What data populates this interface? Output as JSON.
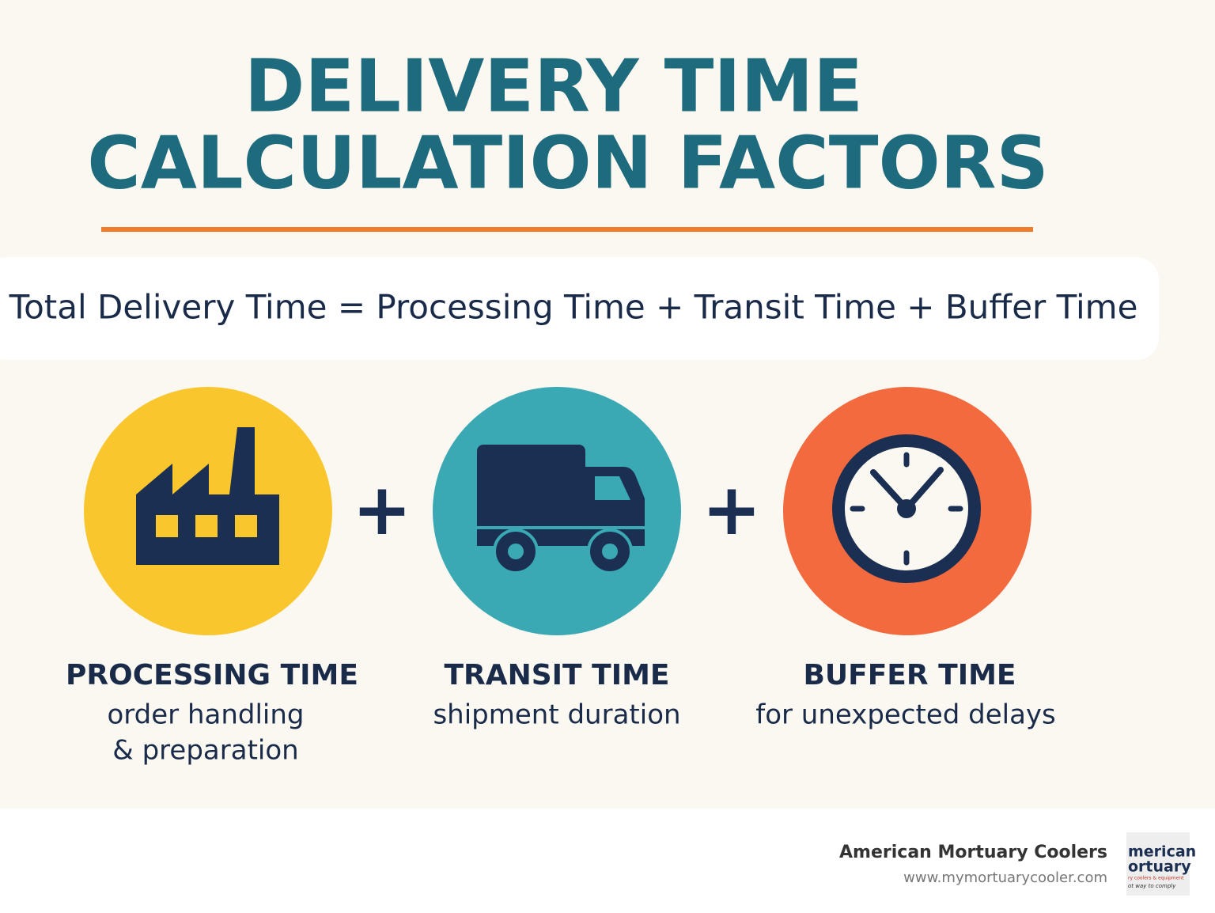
{
  "header": {
    "title_lines": [
      "DELIVERY TIME",
      "CALCULATION FACTORS"
    ]
  },
  "formula": "Total Delivery Time = Processing Time + Transit Time + Buffer Time",
  "factors": [
    {
      "label": "PROCESSING TIME",
      "description": [
        "order handling",
        "& preparation"
      ]
    },
    {
      "label": "TRANSIT TIME",
      "description": [
        "shipment duration"
      ]
    },
    {
      "label": "BUFFER TIME",
      "description": [
        "for unexpected delays"
      ]
    }
  ],
  "operators": [
    "+",
    "+"
  ],
  "footer": {
    "brand": "American Mortuary Coolers",
    "url": "www.mymortuarycooler.com",
    "logo": [
      "merican",
      "ortuary",
      "ry coolers & equipment",
      "ot way to comply"
    ]
  }
}
